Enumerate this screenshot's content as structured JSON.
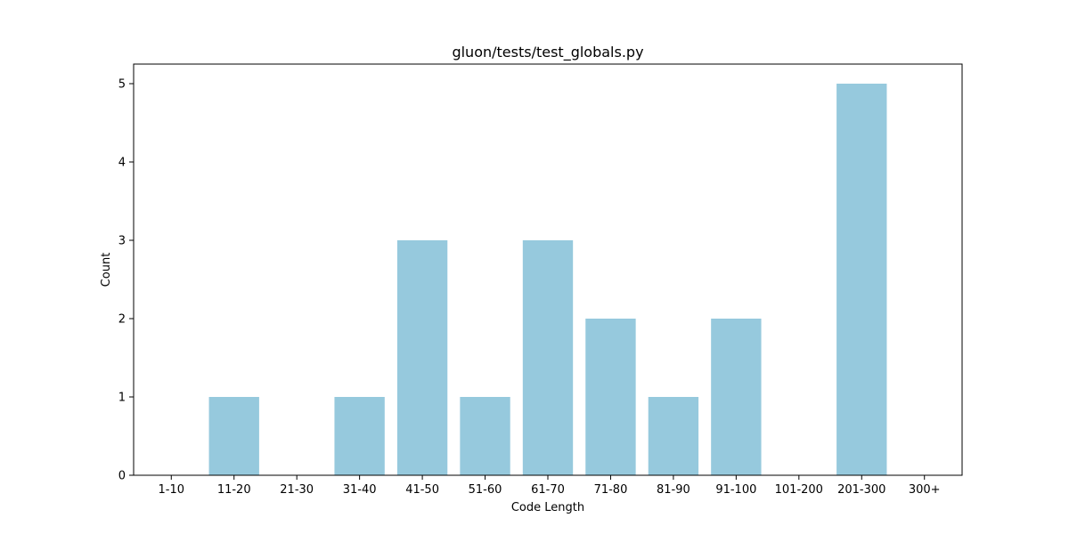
{
  "chart_data": {
    "type": "bar",
    "title": "gluon/tests/test_globals.py",
    "xlabel": "Code Length",
    "ylabel": "Count",
    "categories": [
      "1-10",
      "11-20",
      "21-30",
      "31-40",
      "41-50",
      "51-60",
      "61-70",
      "71-80",
      "81-90",
      "91-100",
      "101-200",
      "201-300",
      "300+"
    ],
    "values": [
      0,
      1,
      0,
      1,
      3,
      1,
      3,
      2,
      1,
      2,
      0,
      5,
      0
    ],
    "ylim": [
      0,
      5.25
    ],
    "yticks": [
      0,
      1,
      2,
      3,
      4,
      5
    ],
    "bar_color": "#96c9dd",
    "grid": false,
    "legend": "none"
  }
}
